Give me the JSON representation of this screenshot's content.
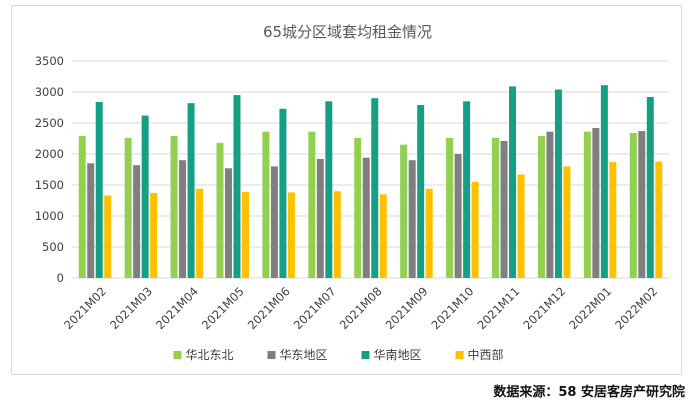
{
  "chart_data": {
    "type": "bar",
    "title": "65城分区域套均租金情况",
    "categories": [
      "2021M02",
      "2021M03",
      "2021M04",
      "2021M05",
      "2021M06",
      "2021M07",
      "2021M08",
      "2021M09",
      "2021M10",
      "2021M11",
      "2021M12",
      "2022M01",
      "2022M02"
    ],
    "series": [
      {
        "name": "华北东北",
        "color": "#92d050",
        "values": [
          2290,
          2260,
          2290,
          2180,
          2360,
          2360,
          2260,
          2150,
          2260,
          2260,
          2290,
          2360,
          2340
        ]
      },
      {
        "name": "华东地区",
        "color": "#7f7f7f",
        "values": [
          1850,
          1820,
          1900,
          1770,
          1800,
          1920,
          1940,
          1900,
          2000,
          2210,
          2360,
          2420,
          2370
        ]
      },
      {
        "name": "华南地区",
        "color": "#15a085",
        "values": [
          2840,
          2620,
          2820,
          2950,
          2730,
          2850,
          2900,
          2790,
          2850,
          3090,
          3040,
          3110,
          2920
        ]
      },
      {
        "name": "中西部",
        "color": "#ffc000",
        "values": [
          1330,
          1370,
          1440,
          1390,
          1380,
          1400,
          1350,
          1440,
          1550,
          1670,
          1800,
          1870,
          1880
        ]
      }
    ],
    "ylim": [
      0,
      3500
    ],
    "yticks": [
      0,
      500,
      1000,
      1500,
      2000,
      2500,
      3000,
      3500
    ],
    "grid": true,
    "legend": "bottom",
    "xlabel": "",
    "ylabel": ""
  },
  "source": "数据来源：58 安居客房产研究院"
}
